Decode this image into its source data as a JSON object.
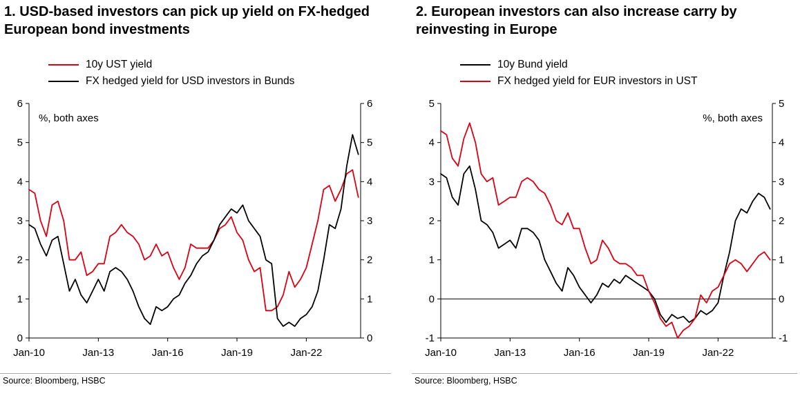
{
  "panels": [
    {
      "title": "1. USD-based investors can pick up yield on FX-hedged European bond investments",
      "legend": [
        {
          "label": "10y UST yield",
          "color": "#db0011"
        },
        {
          "label": "FX hedged yield for USD investors in Bunds",
          "color": "#000000"
        }
      ],
      "axis_note": "%, both axes",
      "source": "Source: Bloomberg, HSBC"
    },
    {
      "title": "2. European investors can also increase carry by reinvesting in Europe",
      "legend": [
        {
          "label": "10y Bund yield",
          "color": "#000000"
        },
        {
          "label": "FX hedged yield for EUR investors in UST",
          "color": "#db0011"
        }
      ],
      "axis_note": "%, both axes",
      "source": "Source: Bloomberg, HSBC"
    }
  ],
  "chart_data": [
    {
      "type": "line",
      "title": "1. USD-based investors can pick up yield on FX-hedged European bond investments",
      "ylabel": "%, both axes",
      "note_anchor": "left",
      "ylim": [
        0,
        6
      ],
      "yticks": [
        0,
        1,
        2,
        3,
        4,
        5,
        6
      ],
      "xlim": [
        2010,
        2024.35
      ],
      "xticks": [
        {
          "t": 2010,
          "label": "Jan-10"
        },
        {
          "t": 2013,
          "label": "Jan-13"
        },
        {
          "t": 2016,
          "label": "Jan-16"
        },
        {
          "t": 2019,
          "label": "Jan-19"
        },
        {
          "t": 2022,
          "label": "Jan-22"
        }
      ],
      "x_start": 2010,
      "x_step": 0.25,
      "series": [
        {
          "name": "10y UST yield",
          "color": "#db0011",
          "values": [
            3.8,
            3.7,
            3.0,
            2.6,
            3.4,
            3.5,
            3.0,
            2.0,
            2.0,
            2.2,
            1.6,
            1.7,
            1.9,
            1.9,
            2.6,
            2.7,
            2.9,
            2.7,
            2.6,
            2.4,
            2.0,
            2.1,
            2.4,
            2.1,
            2.2,
            1.8,
            1.5,
            1.8,
            2.4,
            2.3,
            2.3,
            2.3,
            2.5,
            2.8,
            2.9,
            3.1,
            2.7,
            2.5,
            2.0,
            1.7,
            1.8,
            0.7,
            0.7,
            0.8,
            1.1,
            1.7,
            1.3,
            1.5,
            1.8,
            2.4,
            3.0,
            3.8,
            3.9,
            3.5,
            3.8,
            4.2,
            4.3,
            3.6
          ]
        },
        {
          "name": "FX hedged yield for USD investors in Bunds",
          "color": "#000000",
          "values": [
            2.9,
            2.8,
            2.4,
            2.1,
            2.5,
            2.6,
            1.9,
            1.2,
            1.5,
            1.1,
            0.9,
            1.2,
            1.5,
            1.2,
            1.7,
            1.8,
            1.7,
            1.5,
            1.2,
            0.8,
            0.5,
            0.35,
            0.8,
            0.7,
            0.8,
            1.0,
            1.1,
            1.4,
            1.6,
            1.9,
            2.1,
            2.2,
            2.5,
            2.9,
            3.1,
            3.3,
            3.2,
            3.4,
            3.0,
            2.8,
            2.6,
            2.0,
            1.9,
            0.5,
            0.3,
            0.4,
            0.3,
            0.5,
            0.6,
            0.8,
            1.2,
            2.0,
            2.9,
            2.8,
            3.3,
            4.4,
            5.2,
            4.7
          ]
        }
      ]
    },
    {
      "type": "line",
      "title": "2. European investors can also increase carry by reinvesting in Europe",
      "ylabel": "%, both axes",
      "note_anchor": "right",
      "ylim": [
        -1,
        5
      ],
      "yticks": [
        -1,
        0,
        1,
        2,
        3,
        4,
        5
      ],
      "xlim": [
        2010,
        2024.35
      ],
      "xticks": [
        {
          "t": 2010,
          "label": "Jan-10"
        },
        {
          "t": 2013,
          "label": "Jan-13"
        },
        {
          "t": 2016,
          "label": "Jan-16"
        },
        {
          "t": 2019,
          "label": "Jan-19"
        },
        {
          "t": 2022,
          "label": "Jan-22"
        }
      ],
      "x_start": 2010,
      "x_step": 0.25,
      "series": [
        {
          "name": "10y Bund yield",
          "color": "#000000",
          "values": [
            3.2,
            3.1,
            2.6,
            2.4,
            3.2,
            3.4,
            2.8,
            2.0,
            1.9,
            1.7,
            1.3,
            1.4,
            1.5,
            1.3,
            1.8,
            1.8,
            1.7,
            1.5,
            1.0,
            0.7,
            0.4,
            0.2,
            0.8,
            0.6,
            0.3,
            0.1,
            -0.1,
            0.1,
            0.4,
            0.3,
            0.5,
            0.4,
            0.6,
            0.5,
            0.4,
            0.3,
            0.2,
            0.0,
            -0.4,
            -0.6,
            -0.4,
            -0.5,
            -0.45,
            -0.6,
            -0.5,
            -0.3,
            -0.4,
            -0.3,
            -0.1,
            0.6,
            1.2,
            2.0,
            2.3,
            2.2,
            2.5,
            2.7,
            2.6,
            2.3
          ]
        },
        {
          "name": "FX hedged yield for EUR investors in UST",
          "color": "#db0011",
          "values": [
            4.3,
            4.2,
            3.6,
            3.4,
            4.1,
            4.5,
            4.0,
            3.2,
            3.0,
            3.1,
            2.4,
            2.5,
            2.6,
            2.6,
            3.0,
            3.1,
            3.0,
            2.8,
            2.7,
            2.4,
            2.0,
            1.9,
            2.2,
            1.8,
            1.8,
            1.3,
            0.9,
            1.0,
            1.5,
            1.3,
            1.0,
            0.9,
            0.9,
            0.8,
            0.6,
            0.6,
            0.2,
            -0.1,
            -0.5,
            -0.7,
            -0.6,
            -1.0,
            -0.8,
            -0.7,
            -0.5,
            0.1,
            -0.1,
            0.2,
            0.3,
            0.6,
            0.9,
            1.0,
            0.9,
            0.7,
            0.9,
            1.1,
            1.2,
            1.0
          ]
        }
      ]
    }
  ]
}
